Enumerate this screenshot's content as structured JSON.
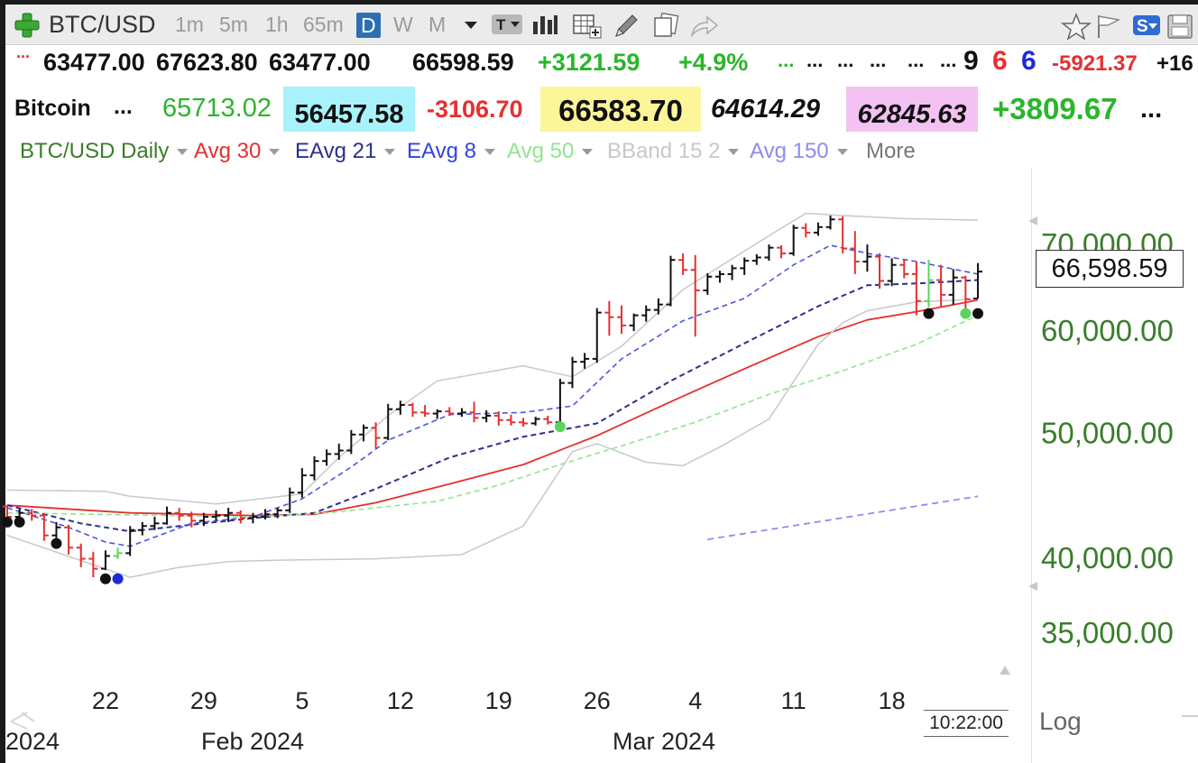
{
  "toolbar": {
    "symbol": "BTC/USD",
    "timeframes": [
      "1m",
      "5m",
      "1h",
      "65m",
      "D",
      "W",
      "M"
    ],
    "selected_timeframe": "D",
    "icons": [
      "plus-icon",
      "dropdown-icon",
      "text-tool-icon",
      "bar-style-icon",
      "table-icon",
      "pencil-icon",
      "copy-icon",
      "share-icon",
      "star-icon",
      "flag-icon",
      "s-badge-icon",
      "save-icon"
    ]
  },
  "quote_row1": {
    "open": "63477.00",
    "high": "67623.80",
    "low": "63477.00",
    "close": "66598.59",
    "change": "+3121.59",
    "change_pct": "+4.9%",
    "dots1": "...",
    "dots2": "...",
    "dots3": "...",
    "dots4": "...",
    "dots5": "...",
    "dots6": "...",
    "count_black": "9",
    "count_red": "6",
    "count_blue": "6",
    "val_neg": "-5921.37",
    "val_pos_cut": "+16"
  },
  "quote_row2": {
    "name": "Bitcoin",
    "dots": "...",
    "v1": "65713.02",
    "v2": "56457.58",
    "v3": "-3106.70",
    "v4": "66583.70",
    "v5": "64614.29",
    "v6": "62845.63",
    "v7": "+3809.67",
    "dots_end": "..."
  },
  "legend": {
    "main": "BTC/USD Daily",
    "avg30": "Avg 30",
    "eavg21": "EAvg 21",
    "eavg8": "EAvg 8",
    "avg50": "Avg 50",
    "bband": "BBand 15 2",
    "avg150": "Avg 150",
    "more": "More"
  },
  "colors": {
    "up_bar": "#111111",
    "down_bar": "#e53030",
    "avg30": "#e53030",
    "eavg21": "#2e2f8c",
    "eavg8": "#4b55e0",
    "avg50": "#8ee68e",
    "bband": "#c8c8c8",
    "avg150": "#8c8cf0",
    "axis_text": "#3a7d2a",
    "highlight_cyan": "#a8f3fb",
    "highlight_yellow": "#fcf59a",
    "highlight_pink": "#f3c2f3"
  },
  "price_label": "66,598.59",
  "clock": "10:22:00",
  "log_label": "Log",
  "chart_data": {
    "type": "ohlc",
    "title": "BTC/USD Daily",
    "y_scale": "log",
    "ylim": [
      34000,
      76000
    ],
    "yticks": [
      35000,
      40000,
      50000,
      60000,
      70000
    ],
    "ytick_labels": [
      "35,000.00",
      "40,000.00",
      "50,000.00",
      "60,000.00",
      "70,000.00"
    ],
    "xtick_labels": [
      "22",
      "29",
      "5",
      "12",
      "19",
      "26",
      "4",
      "11",
      "18"
    ],
    "month_labels": [
      "2024",
      "Feb 2024",
      "Mar 2024"
    ],
    "bars": [
      {
        "o": 43800,
        "h": 43900,
        "l": 42700,
        "c": 43000
      },
      {
        "o": 43000,
        "h": 43600,
        "l": 42400,
        "c": 43300
      },
      {
        "o": 43300,
        "h": 43600,
        "l": 42700,
        "c": 43100
      },
      {
        "o": 43100,
        "h": 43300,
        "l": 41200,
        "c": 41600
      },
      {
        "o": 41600,
        "h": 42600,
        "l": 41000,
        "c": 42200
      },
      {
        "o": 42200,
        "h": 42400,
        "l": 40200,
        "c": 40700
      },
      {
        "o": 40700,
        "h": 41000,
        "l": 39300,
        "c": 39900
      },
      {
        "o": 39900,
        "h": 40400,
        "l": 38600,
        "c": 39200
      },
      {
        "o": 39200,
        "h": 40500,
        "l": 39100,
        "c": 40100
      },
      {
        "o": 40100,
        "h": 40700,
        "l": 39900,
        "c": 40300
      },
      {
        "o": 40300,
        "h": 42300,
        "l": 40100,
        "c": 42000
      },
      {
        "o": 42000,
        "h": 42600,
        "l": 41600,
        "c": 42300
      },
      {
        "o": 42300,
        "h": 43000,
        "l": 42000,
        "c": 42500
      },
      {
        "o": 42500,
        "h": 43800,
        "l": 42400,
        "c": 43300
      },
      {
        "o": 43300,
        "h": 43700,
        "l": 42700,
        "c": 43100
      },
      {
        "o": 43100,
        "h": 43400,
        "l": 42200,
        "c": 42700
      },
      {
        "o": 42700,
        "h": 43300,
        "l": 42300,
        "c": 43000
      },
      {
        "o": 43000,
        "h": 43500,
        "l": 42700,
        "c": 43100
      },
      {
        "o": 43100,
        "h": 43700,
        "l": 42600,
        "c": 43300
      },
      {
        "o": 43300,
        "h": 43500,
        "l": 42500,
        "c": 42900
      },
      {
        "o": 42900,
        "h": 43300,
        "l": 42500,
        "c": 43000
      },
      {
        "o": 43000,
        "h": 43600,
        "l": 42800,
        "c": 43200
      },
      {
        "o": 43200,
        "h": 43700,
        "l": 42900,
        "c": 43500
      },
      {
        "o": 43500,
        "h": 45300,
        "l": 43300,
        "c": 44900
      },
      {
        "o": 44900,
        "h": 46900,
        "l": 44500,
        "c": 46300
      },
      {
        "o": 46300,
        "h": 47900,
        "l": 45900,
        "c": 47500
      },
      {
        "o": 47500,
        "h": 48500,
        "l": 47100,
        "c": 48100
      },
      {
        "o": 48100,
        "h": 49000,
        "l": 47600,
        "c": 48400
      },
      {
        "o": 48400,
        "h": 50200,
        "l": 48100,
        "c": 49800
      },
      {
        "o": 49800,
        "h": 50700,
        "l": 49200,
        "c": 50400
      },
      {
        "o": 50400,
        "h": 50900,
        "l": 48600,
        "c": 49500
      },
      {
        "o": 49500,
        "h": 52600,
        "l": 49300,
        "c": 52100
      },
      {
        "o": 52100,
        "h": 52900,
        "l": 51600,
        "c": 52500
      },
      {
        "o": 52500,
        "h": 52700,
        "l": 51400,
        "c": 51800
      },
      {
        "o": 51800,
        "h": 52500,
        "l": 51400,
        "c": 51700
      },
      {
        "o": 51700,
        "h": 52100,
        "l": 51200,
        "c": 51900
      },
      {
        "o": 51900,
        "h": 52300,
        "l": 51500,
        "c": 51700
      },
      {
        "o": 51700,
        "h": 52200,
        "l": 51400,
        "c": 51800
      },
      {
        "o": 51800,
        "h": 52800,
        "l": 50900,
        "c": 51300
      },
      {
        "o": 51300,
        "h": 52000,
        "l": 50900,
        "c": 51500
      },
      {
        "o": 51500,
        "h": 51900,
        "l": 50600,
        "c": 51100
      },
      {
        "o": 51100,
        "h": 51600,
        "l": 50600,
        "c": 50900
      },
      {
        "o": 50900,
        "h": 51300,
        "l": 50500,
        "c": 50800
      },
      {
        "o": 50800,
        "h": 51400,
        "l": 50600,
        "c": 51200
      },
      {
        "o": 51200,
        "h": 51500,
        "l": 50700,
        "c": 50900
      },
      {
        "o": 50900,
        "h": 55000,
        "l": 50600,
        "c": 54600
      },
      {
        "o": 54600,
        "h": 57200,
        "l": 54100,
        "c": 56700
      },
      {
        "o": 56700,
        "h": 57600,
        "l": 56000,
        "c": 57000
      },
      {
        "o": 57000,
        "h": 62400,
        "l": 56600,
        "c": 61900
      },
      {
        "o": 61900,
        "h": 63200,
        "l": 59400,
        "c": 61400
      },
      {
        "o": 61400,
        "h": 62700,
        "l": 59600,
        "c": 60500
      },
      {
        "o": 60500,
        "h": 61800,
        "l": 59900,
        "c": 61600
      },
      {
        "o": 61600,
        "h": 62700,
        "l": 60900,
        "c": 62200
      },
      {
        "o": 62200,
        "h": 63500,
        "l": 61700,
        "c": 62800
      },
      {
        "o": 62800,
        "h": 68500,
        "l": 62600,
        "c": 68000
      },
      {
        "o": 68000,
        "h": 68800,
        "l": 66200,
        "c": 66800
      },
      {
        "o": 66800,
        "h": 68600,
        "l": 59300,
        "c": 64400
      },
      {
        "o": 64400,
        "h": 66400,
        "l": 63900,
        "c": 66000
      },
      {
        "o": 66000,
        "h": 66700,
        "l": 65300,
        "c": 66300
      },
      {
        "o": 66300,
        "h": 67400,
        "l": 65600,
        "c": 67000
      },
      {
        "o": 67000,
        "h": 68300,
        "l": 66200,
        "c": 67900
      },
      {
        "o": 67900,
        "h": 68700,
        "l": 67400,
        "c": 68300
      },
      {
        "o": 68300,
        "h": 69900,
        "l": 67900,
        "c": 69500
      },
      {
        "o": 69500,
        "h": 69800,
        "l": 68200,
        "c": 68800
      },
      {
        "o": 68800,
        "h": 72400,
        "l": 68500,
        "c": 72000
      },
      {
        "o": 72000,
        "h": 72600,
        "l": 70800,
        "c": 71400
      },
      {
        "o": 71400,
        "h": 72700,
        "l": 71000,
        "c": 72100
      },
      {
        "o": 72100,
        "h": 73600,
        "l": 71800,
        "c": 73100
      },
      {
        "o": 73100,
        "h": 73500,
        "l": 68800,
        "c": 69400
      },
      {
        "o": 69400,
        "h": 71600,
        "l": 66300,
        "c": 67800
      },
      {
        "o": 67800,
        "h": 69900,
        "l": 66600,
        "c": 68400
      },
      {
        "o": 68400,
        "h": 68800,
        "l": 64600,
        "c": 65500
      },
      {
        "o": 65500,
        "h": 68200,
        "l": 64900,
        "c": 67400
      },
      {
        "o": 67400,
        "h": 68000,
        "l": 65800,
        "c": 66300
      },
      {
        "o": 66300,
        "h": 67800,
        "l": 61600,
        "c": 63200
      },
      {
        "o": 63200,
        "h": 68000,
        "l": 62500,
        "c": 65600
      },
      {
        "o": 65600,
        "h": 67400,
        "l": 62600,
        "c": 63900
      },
      {
        "o": 63900,
        "h": 66900,
        "l": 62800,
        "c": 65900
      },
      {
        "o": 65900,
        "h": 66100,
        "l": 62100,
        "c": 63400
      },
      {
        "o": 63477,
        "h": 67623.8,
        "l": 63477,
        "c": 66598.59
      }
    ],
    "series": [
      {
        "name": "Avg 30",
        "style": "solid",
        "x": [
          0,
          10,
          20,
          25,
          30,
          36,
          42,
          48,
          54,
          60,
          66,
          70,
          74,
          79
        ],
        "values": [
          43900,
          43300,
          43100,
          43200,
          44100,
          45600,
          47200,
          49700,
          52800,
          56000,
          59300,
          61100,
          62000,
          63300
        ]
      },
      {
        "name": "EAvg 21",
        "style": "dashed",
        "x": [
          0,
          6,
          10,
          15,
          20,
          25,
          30,
          36,
          42,
          48,
          54,
          60,
          66,
          70,
          74,
          79
        ],
        "values": [
          43900,
          42500,
          41900,
          42400,
          42900,
          43300,
          45200,
          47800,
          49600,
          50800,
          54800,
          58600,
          62600,
          65000,
          65200,
          65600
        ]
      },
      {
        "name": "EAvg 8",
        "style": "dashed",
        "x": [
          0,
          5,
          8,
          10,
          15,
          20,
          24,
          28,
          31,
          36,
          42,
          46,
          50,
          55,
          60,
          64,
          67,
          70,
          74,
          79
        ],
        "values": [
          43700,
          42200,
          41100,
          40800,
          42500,
          43000,
          44400,
          47000,
          49300,
          51600,
          51800,
          52400,
          57000,
          61000,
          63500,
          67400,
          69800,
          68800,
          67800,
          66300
        ]
      },
      {
        "name": "Avg 50",
        "style": "dashed",
        "x": [
          0,
          20,
          26,
          35,
          40,
          45,
          50,
          56,
          62,
          68,
          74,
          79
        ],
        "values": [
          43300,
          43000,
          43300,
          44200,
          45500,
          47200,
          48800,
          50900,
          53500,
          55800,
          58500,
          61600
        ]
      },
      {
        "name": "BBand 15 2 Upper",
        "style": "solid",
        "x": [
          0,
          8,
          10,
          17,
          24,
          27,
          31,
          35,
          42,
          46,
          50,
          55,
          62,
          65,
          68,
          73,
          79
        ],
        "values": [
          45100,
          45000,
          44600,
          44000,
          44800,
          47800,
          51500,
          54800,
          56300,
          55200,
          58300,
          64500,
          71000,
          73900,
          73600,
          73200,
          73000
        ]
      },
      {
        "name": "BBand 15 2 Lower",
        "style": "solid",
        "x": [
          0,
          10,
          14,
          18,
          22,
          30,
          37,
          42,
          46,
          48,
          52,
          55,
          58,
          62,
          66,
          68,
          70,
          74,
          79
        ],
        "values": [
          41600,
          38600,
          39300,
          39700,
          39800,
          39900,
          40200,
          42300,
          48300,
          49000,
          47400,
          47100,
          48700,
          51200,
          58500,
          60800,
          62100,
          63100,
          63400
        ]
      },
      {
        "name": "Avg 150",
        "style": "dashed",
        "x": [
          57,
          79
        ],
        "values": [
          41300,
          44600
        ]
      }
    ],
    "signal_dots": [
      {
        "x": 0,
        "y": 42600,
        "color": "black"
      },
      {
        "x": 1,
        "y": 42600,
        "color": "black"
      },
      {
        "x": 4,
        "y": 41000,
        "color": "black"
      },
      {
        "x": 8,
        "y": 38500,
        "color": "black"
      },
      {
        "x": 9,
        "y": 38500,
        "color": "blue"
      },
      {
        "x": 45,
        "y": 50500,
        "color": "green"
      },
      {
        "x": 75,
        "y": 61800,
        "color": "black"
      },
      {
        "x": 78,
        "y": 61800,
        "color": "green"
      },
      {
        "x": 79,
        "y": 61800,
        "color": "black"
      }
    ]
  }
}
